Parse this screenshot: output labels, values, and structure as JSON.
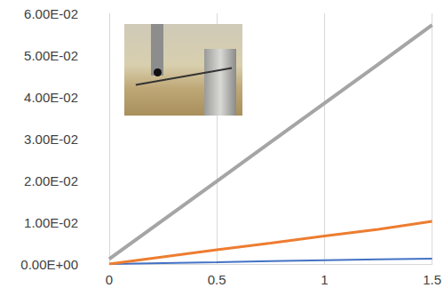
{
  "chart_data": {
    "type": "line",
    "x": [
      0,
      0.25,
      0.5,
      0.75,
      1,
      1.25,
      1.5
    ],
    "series": [
      {
        "color": "#a5a5a5",
        "values": [
          0.0012,
          0.0105,
          0.0198,
          0.0292,
          0.0385,
          0.0478,
          0.0572
        ]
      },
      {
        "color": "#ed7d31",
        "values": [
          0,
          0.0017,
          0.0034,
          0.005,
          0.0067,
          0.0083,
          0.0102
        ]
      },
      {
        "color": "#4472c4",
        "values": [
          0,
          0.0002,
          0.0004,
          0.0007,
          0.0009,
          0.0011,
          0.0013
        ]
      }
    ],
    "xlim": [
      0,
      1.5
    ],
    "xticks": [
      0,
      0.5,
      1,
      1.5
    ],
    "ylim": [
      0,
      0.06
    ],
    "yticks": [
      {
        "value": 0,
        "label": "0.00E+00"
      },
      {
        "value": 0.01,
        "label": "1.00E-02"
      },
      {
        "value": 0.02,
        "label": "2.00E-02"
      },
      {
        "value": 0.03,
        "label": "3.00E-02"
      },
      {
        "value": 0.04,
        "label": "4.00E-02"
      },
      {
        "value": 0.05,
        "label": "5.00E-02"
      },
      {
        "value": 0.06,
        "label": "6.00E-02"
      }
    ],
    "grid": true
  }
}
